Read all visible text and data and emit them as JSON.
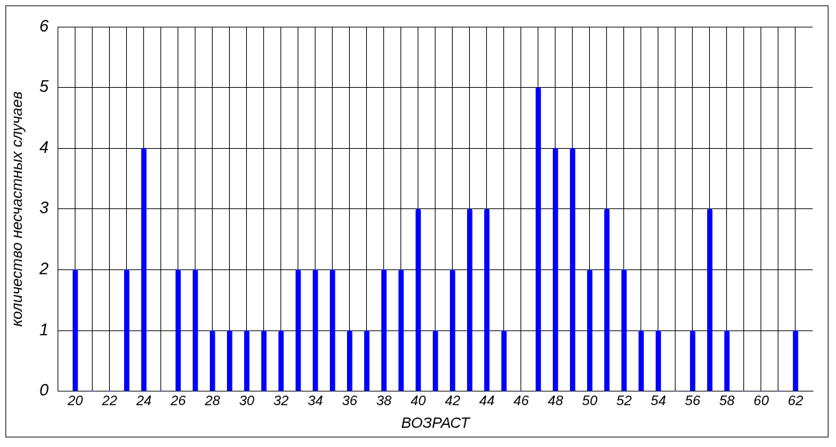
{
  "chart_data": {
    "type": "bar",
    "xlabel": "ВОЗРАСТ",
    "ylabel": "количество несчастных случаев",
    "x": [
      20,
      21,
      22,
      23,
      24,
      25,
      26,
      27,
      28,
      29,
      30,
      31,
      32,
      33,
      34,
      35,
      36,
      37,
      38,
      39,
      40,
      41,
      42,
      43,
      44,
      45,
      46,
      47,
      48,
      49,
      50,
      51,
      52,
      53,
      54,
      55,
      56,
      57,
      58,
      59,
      60,
      61,
      62
    ],
    "values": [
      2,
      0,
      0,
      2,
      4,
      0,
      2,
      2,
      1,
      1,
      1,
      1,
      1,
      2,
      2,
      2,
      1,
      1,
      2,
      2,
      3,
      1,
      2,
      3,
      3,
      1,
      0,
      5,
      4,
      4,
      2,
      3,
      2,
      1,
      1,
      0,
      1,
      3,
      1,
      0,
      0,
      0,
      1
    ],
    "color": "#0000ff",
    "xlim": [
      19,
      63
    ],
    "xticks": [
      20,
      {
        "value": 21,
        "label": null
      },
      22,
      {
        "value": 23,
        "label": null
      },
      24,
      {
        "value": 25,
        "label": null
      },
      26,
      {
        "value": 27,
        "label": null
      },
      28,
      {
        "value": 29,
        "label": null
      },
      30,
      {
        "value": 31,
        "label": null
      },
      32,
      {
        "value": 33,
        "label": null
      },
      34,
      {
        "value": 35,
        "label": null
      },
      36,
      {
        "value": 37,
        "label": null
      },
      38,
      {
        "value": 39,
        "label": null
      },
      40,
      {
        "value": 41,
        "label": null
      },
      42,
      {
        "value": 43,
        "label": null
      },
      44,
      {
        "value": 45,
        "label": null
      },
      46,
      {
        "value": 47,
        "label": null
      },
      48,
      {
        "value": 49,
        "label": null
      },
      50,
      {
        "value": 51,
        "label": null
      },
      52,
      {
        "value": 53,
        "label": null
      },
      54,
      {
        "value": 55,
        "label": null
      },
      56,
      {
        "value": 57,
        "label": null
      },
      58,
      {
        "value": 59,
        "label": null
      },
      60,
      {
        "value": 61,
        "label": null
      },
      62
    ],
    "ylim": [
      0,
      6
    ],
    "yticks": [
      0,
      1,
      2,
      3,
      4,
      5,
      6
    ],
    "grid": true,
    "legend": false
  }
}
